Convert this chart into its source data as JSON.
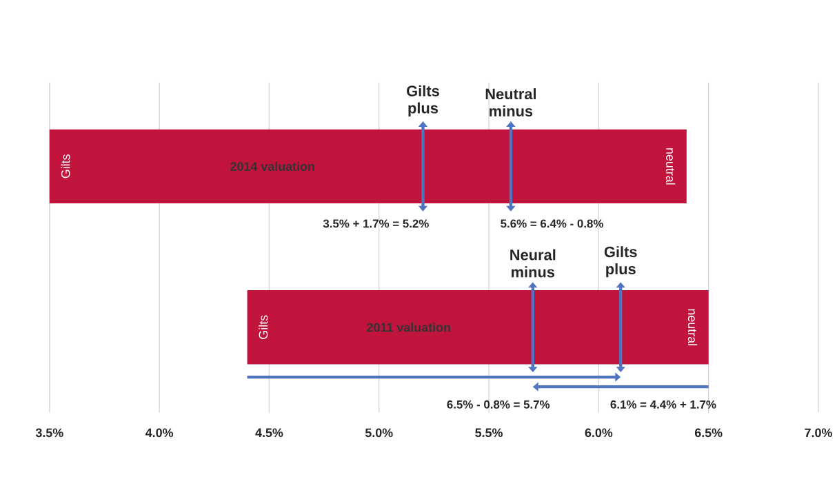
{
  "chart_data": {
    "type": "bar",
    "orientation": "horizontal",
    "categories": [
      "2014 valuation",
      "2011 valuation"
    ],
    "series": [
      {
        "color": "#c0143c",
        "base": [
          3.5,
          4.4
        ],
        "values": [
          2.9,
          2.1
        ]
      }
    ],
    "xlim": [
      3.5,
      7.0
    ],
    "xticks": [
      {
        "value": 3.5,
        "label": "3.5%"
      },
      {
        "value": 4.0,
        "label": "4.0%"
      },
      {
        "value": 4.5,
        "label": "4.5%"
      },
      {
        "value": 5.0,
        "label": "5.0%"
      },
      {
        "value": 5.5,
        "label": "5.5%"
      },
      {
        "value": 6.0,
        "label": "6.0%"
      },
      {
        "value": 6.5,
        "label": "6.5%"
      },
      {
        "value": 7.0,
        "label": "7.0%"
      }
    ],
    "grid": "x",
    "tick_labels": "x",
    "ref_lines": [
      {
        "axis": "x",
        "value": 5.2,
        "label": "Gilts plus"
      },
      {
        "axis": "x",
        "value": 5.6,
        "label": "Neutral minus"
      },
      {
        "axis": "x",
        "value": 5.7,
        "label": "Neural minus"
      },
      {
        "axis": "x",
        "value": 6.1,
        "label": "Gilts plus"
      }
    ],
    "annotations": [
      "3.5% + 1.7% = 5.2%",
      "5.6% = 6.4% - 0.8%",
      "6.5% - 0.8% = 5.7%",
      "6.1% = 4.4% + 1.7%",
      "Gilts",
      "neutral",
      "Gilts",
      "neutral"
    ]
  }
}
